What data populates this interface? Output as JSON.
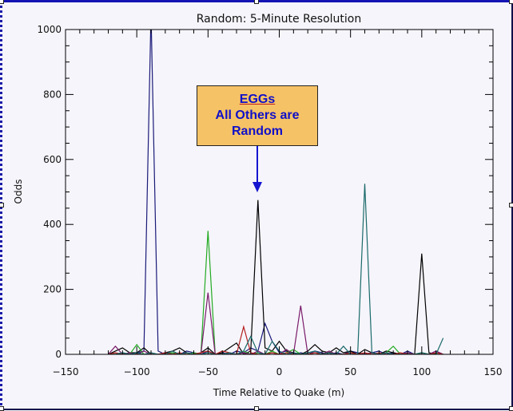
{
  "chart_data": {
    "type": "line",
    "title": "Random: 5-Minute Resolution",
    "xlabel": "Time Relative to Quake (m)",
    "ylabel": "Odds",
    "xlim": [
      -150,
      150
    ],
    "ylim": [
      0,
      1000
    ],
    "x_ticks": [
      -150,
      -100,
      -50,
      0,
      50,
      100,
      150
    ],
    "y_ticks": [
      0,
      200,
      400,
      600,
      800,
      1000
    ],
    "grid": false,
    "legend": null,
    "annotation": {
      "lines": [
        "EGGs",
        "All Others are Random"
      ],
      "line1": "EGGs",
      "line2": "All Others are",
      "line3": "Random",
      "points_to_x": -15,
      "background": "#f6c266",
      "text_color": "#1010c8"
    },
    "series": [
      {
        "name": "navy",
        "color": "#1a1a7a",
        "x": [
          -120,
          -115,
          -110,
          -105,
          -100,
          -95,
          -90,
          -85,
          -80,
          -75,
          -70,
          -65,
          -60,
          -55,
          -50,
          -45,
          -40,
          -35,
          -30,
          -25,
          -20,
          -15,
          -10,
          -5,
          0,
          5,
          10,
          15,
          20,
          25,
          30,
          35,
          40,
          45,
          50,
          55,
          60,
          65,
          70,
          75,
          80,
          85,
          90,
          95,
          100,
          105,
          110,
          115
        ],
        "values": [
          0,
          0,
          5,
          0,
          5,
          10,
          1050,
          10,
          0,
          5,
          0,
          10,
          5,
          0,
          10,
          0,
          5,
          0,
          10,
          5,
          20,
          10,
          95,
          40,
          5,
          10,
          0,
          5,
          0,
          10,
          5,
          0,
          5,
          0,
          10,
          5,
          0,
          5,
          10,
          0,
          5,
          0,
          10,
          0,
          5,
          0,
          10,
          0
        ]
      },
      {
        "name": "black (EGGs)",
        "color": "#000000",
        "x": [
          -120,
          -115,
          -110,
          -105,
          -100,
          -95,
          -90,
          -85,
          -80,
          -75,
          -70,
          -65,
          -60,
          -55,
          -50,
          -45,
          -40,
          -35,
          -30,
          -25,
          -20,
          -15,
          -10,
          -5,
          0,
          5,
          10,
          15,
          20,
          25,
          30,
          35,
          40,
          45,
          50,
          55,
          60,
          65,
          70,
          75,
          80,
          85,
          90,
          95,
          100,
          105,
          110,
          115
        ],
        "values": [
          0,
          10,
          20,
          5,
          5,
          20,
          0,
          0,
          5,
          10,
          20,
          5,
          0,
          5,
          20,
          0,
          5,
          20,
          35,
          0,
          10,
          475,
          20,
          10,
          40,
          10,
          5,
          0,
          10,
          30,
          10,
          5,
          20,
          5,
          10,
          0,
          15,
          5,
          0,
          10,
          5,
          0,
          0,
          0,
          310,
          5,
          0,
          0
        ]
      },
      {
        "name": "green",
        "color": "#22aa22",
        "x": [
          -120,
          -115,
          -110,
          -105,
          -100,
          -95,
          -90,
          -85,
          -80,
          -75,
          -70,
          -65,
          -60,
          -55,
          -50,
          -45,
          -40,
          -35,
          -30,
          -25,
          -20,
          -15,
          -10,
          -5,
          0,
          5,
          10,
          15,
          20,
          25,
          30,
          35,
          40,
          45,
          50,
          55,
          60,
          65,
          70,
          75,
          80,
          85,
          90,
          95,
          100,
          105,
          110,
          115
        ],
        "values": [
          0,
          0,
          5,
          0,
          30,
          0,
          0,
          0,
          0,
          5,
          0,
          0,
          5,
          0,
          380,
          0,
          0,
          5,
          0,
          10,
          0,
          5,
          0,
          10,
          0,
          5,
          15,
          0,
          0,
          5,
          0,
          5,
          0,
          0,
          5,
          0,
          0,
          5,
          0,
          5,
          25,
          0,
          5,
          0,
          5,
          0,
          0,
          0
        ]
      },
      {
        "name": "purple",
        "color": "#7a1a6a",
        "x": [
          -120,
          -115,
          -110,
          -105,
          -100,
          -95,
          -90,
          -85,
          -80,
          -75,
          -70,
          -65,
          -60,
          -55,
          -50,
          -45,
          -40,
          -35,
          -30,
          -25,
          -20,
          -15,
          -10,
          -5,
          0,
          5,
          10,
          15,
          20,
          25,
          30,
          35,
          40,
          45,
          50,
          55,
          60,
          65,
          70,
          75,
          80,
          85,
          90,
          95,
          100,
          105,
          110,
          115
        ],
        "values": [
          0,
          25,
          0,
          5,
          0,
          10,
          0,
          0,
          5,
          0,
          0,
          5,
          0,
          0,
          190,
          0,
          0,
          5,
          0,
          5,
          0,
          10,
          0,
          5,
          0,
          15,
          0,
          150,
          0,
          5,
          0,
          10,
          0,
          0,
          5,
          0,
          0,
          5,
          0,
          5,
          0,
          0,
          5,
          0,
          0,
          0,
          10,
          0
        ]
      },
      {
        "name": "red",
        "color": "#b42020",
        "x": [
          -120,
          -115,
          -110,
          -105,
          -100,
          -95,
          -90,
          -85,
          -80,
          -75,
          -70,
          -65,
          -60,
          -55,
          -50,
          -45,
          -40,
          -35,
          -30,
          -25,
          -20,
          -15,
          -10,
          -5,
          0,
          5,
          10,
          15,
          20,
          25,
          30,
          35,
          40,
          45,
          50,
          55,
          60,
          65,
          70,
          75,
          80,
          85,
          90,
          95,
          100,
          105,
          110,
          115
        ],
        "values": [
          0,
          5,
          0,
          0,
          0,
          0,
          0,
          0,
          5,
          0,
          5,
          0,
          0,
          5,
          10,
          0,
          10,
          5,
          0,
          85,
          5,
          0,
          0,
          5,
          0,
          5,
          0,
          0,
          0,
          5,
          0,
          5,
          0,
          0,
          5,
          0,
          5,
          0,
          5,
          0,
          0,
          5,
          0,
          0,
          0,
          0,
          5,
          0
        ]
      },
      {
        "name": "teal",
        "color": "#1a6a6a",
        "x": [
          -120,
          -115,
          -110,
          -105,
          -100,
          -95,
          -90,
          -85,
          -80,
          -75,
          -70,
          -65,
          -60,
          -55,
          -50,
          -45,
          -40,
          -35,
          -30,
          -25,
          -20,
          -15,
          -10,
          -5,
          0,
          5,
          10,
          15,
          20,
          25,
          30,
          35,
          40,
          45,
          50,
          55,
          60,
          65,
          70,
          75,
          80,
          85,
          90,
          95,
          100,
          105,
          110,
          115
        ],
        "values": [
          0,
          0,
          5,
          0,
          5,
          0,
          5,
          0,
          0,
          10,
          0,
          5,
          0,
          0,
          5,
          0,
          0,
          5,
          0,
          10,
          55,
          5,
          0,
          40,
          10,
          0,
          5,
          0,
          5,
          10,
          0,
          5,
          0,
          25,
          0,
          0,
          525,
          5,
          0,
          5,
          0,
          0,
          0,
          0,
          5,
          0,
          0,
          50
        ]
      }
    ]
  }
}
